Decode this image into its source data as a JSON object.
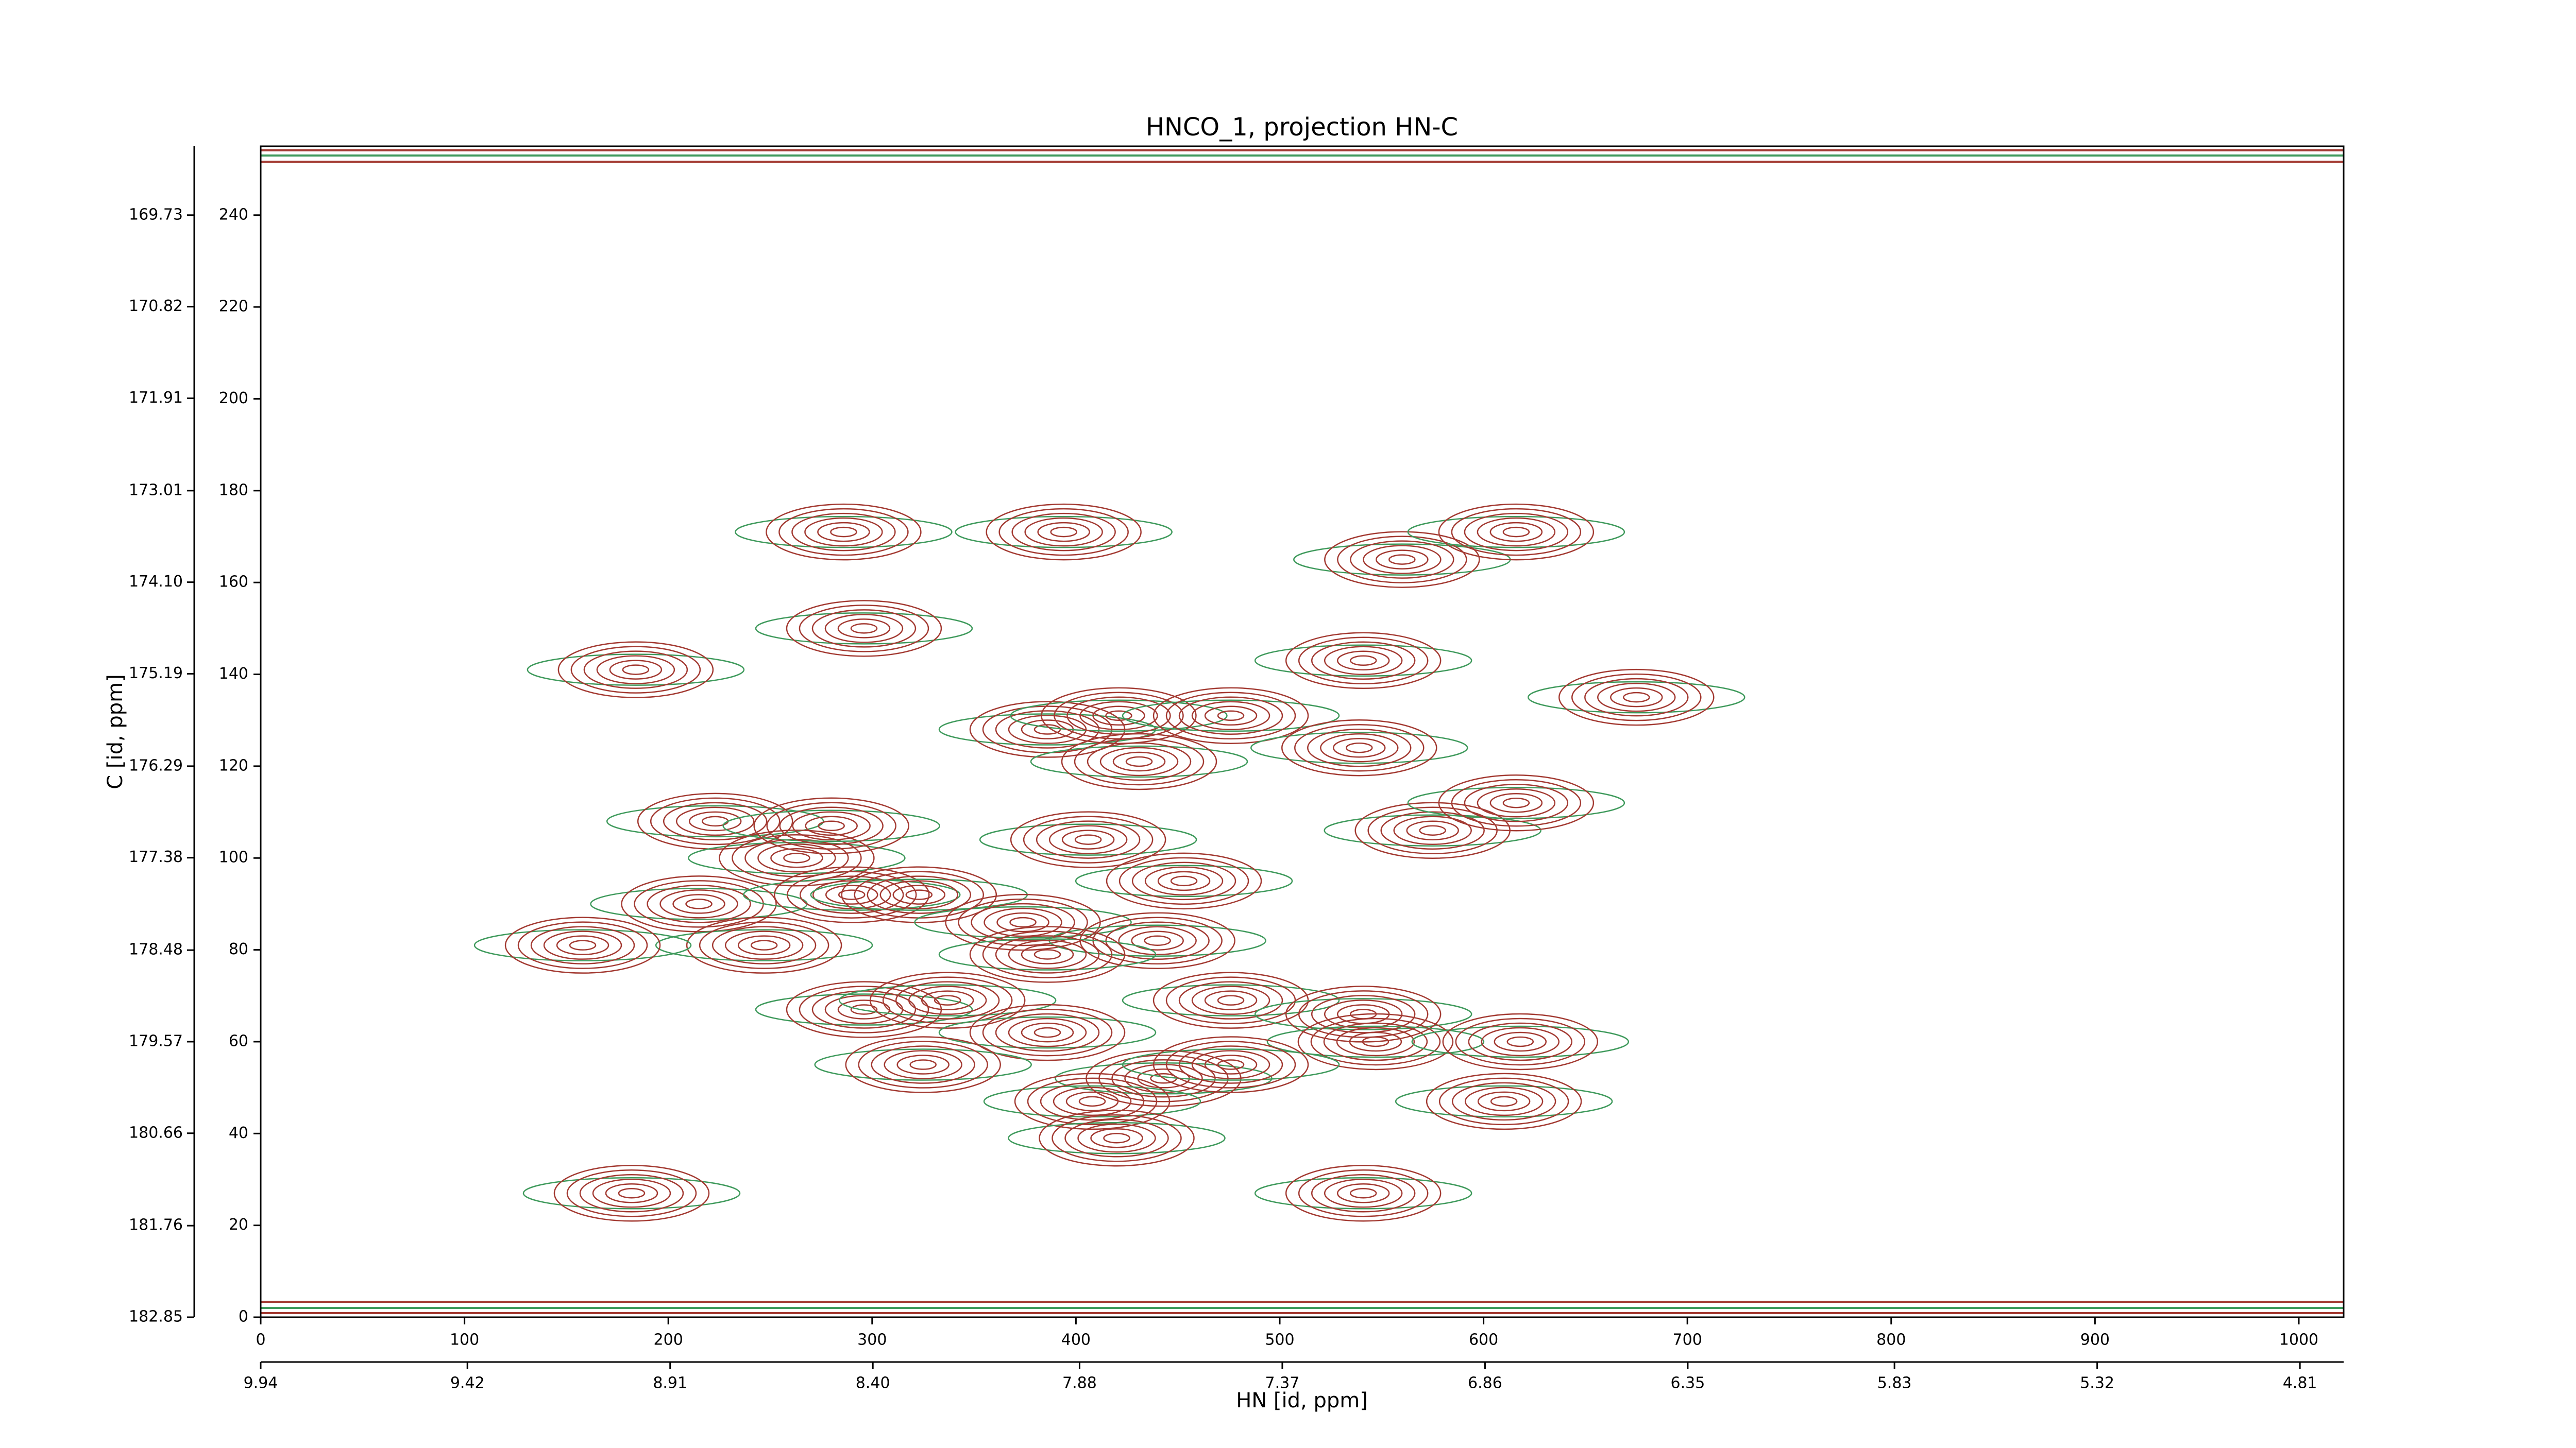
{
  "chart_data": {
    "type": "contour",
    "title": "HNCO_1, projection HN-C",
    "xlabel": "HN [id, ppm]",
    "ylabel": "C [id, ppm]",
    "xlim": [
      0,
      1022
    ],
    "ylim": [
      0,
      255
    ],
    "xticks": [
      0,
      100,
      200,
      300,
      400,
      500,
      600,
      700,
      800,
      900,
      1000
    ],
    "yticks": [
      0,
      20,
      40,
      60,
      80,
      100,
      120,
      140,
      160,
      180,
      200,
      220,
      240
    ],
    "x2lim": [
      9.94,
      4.7
    ],
    "x2ticks": [
      9.94,
      9.42,
      8.91,
      {
        "value": 8.4,
        "label": "8.40"
      },
      7.88,
      7.37,
      6.86,
      6.35,
      5.83,
      5.32,
      4.81
    ],
    "y2lim": [
      182.85,
      168.91
    ],
    "y2ticks": [
      182.85,
      181.76,
      180.66,
      179.57,
      178.48,
      177.38,
      176.29,
      175.19,
      {
        "value": 174.1,
        "label": "174.10"
      },
      173.01,
      171.91,
      170.82,
      169.73
    ],
    "positive_color": "#a33a32",
    "negative_color": "#3f9a5c",
    "peaks": {
      "x": [
        184,
        296,
        286,
        394,
        560,
        616,
        675,
        541,
        386,
        421,
        476,
        431,
        539,
        575,
        616,
        223,
        263,
        280,
        215,
        247,
        158,
        290,
        323,
        406,
        453,
        374,
        440,
        386,
        476,
        296,
        337,
        386,
        541,
        547,
        618,
        325,
        443,
        476,
        408,
        610,
        420,
        182,
        541
      ],
      "y": [
        141,
        150,
        171,
        171,
        165,
        171,
        135,
        143,
        128,
        131,
        131,
        121,
        124,
        106,
        112,
        108,
        100,
        107,
        90,
        81,
        81,
        92,
        92,
        104,
        95,
        86,
        82,
        79,
        69,
        67,
        69,
        62,
        66,
        60,
        60,
        55,
        52,
        55,
        47,
        47,
        39,
        27,
        27
      ]
    }
  }
}
